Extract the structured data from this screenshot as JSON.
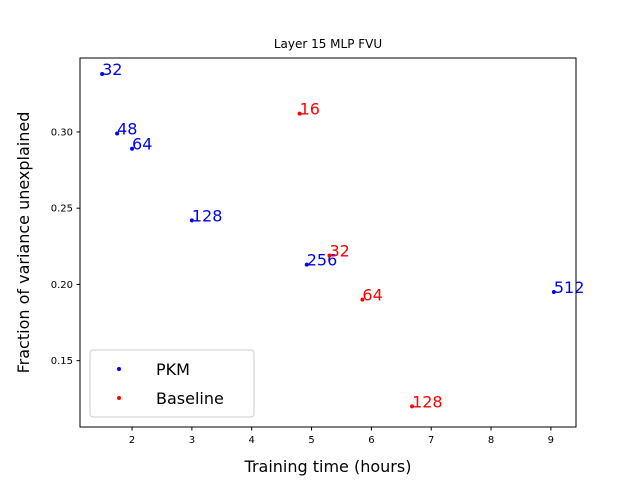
{
  "chart_data": {
    "type": "scatter",
    "title": "Layer 15 MLP FVU",
    "xlabel": "Training time (hours)",
    "ylabel": "Fraction of variance unexplained",
    "xlim": [
      1.13,
      9.42
    ],
    "ylim": [
      0.1065,
      0.3485
    ],
    "xticks": [
      2,
      3,
      4,
      5,
      6,
      7,
      8,
      9
    ],
    "yticks": [
      0.15,
      0.2,
      0.25,
      0.3
    ],
    "ytick_labels": [
      "0.15",
      "0.20",
      "0.25",
      "0.30"
    ],
    "grid": false,
    "legend_position": "lower-left",
    "series": [
      {
        "name": "PKM",
        "color": "#0000ff",
        "points": [
          {
            "x": 1.5,
            "y": 0.338,
            "label": "32"
          },
          {
            "x": 1.75,
            "y": 0.299,
            "label": "48"
          },
          {
            "x": 2.0,
            "y": 0.289,
            "label": "64"
          },
          {
            "x": 3.0,
            "y": 0.242,
            "label": "128"
          },
          {
            "x": 4.92,
            "y": 0.213,
            "label": "256"
          },
          {
            "x": 9.05,
            "y": 0.195,
            "label": "512"
          }
        ]
      },
      {
        "name": "Baseline",
        "color": "#ff0000",
        "points": [
          {
            "x": 4.8,
            "y": 0.312,
            "label": "16"
          },
          {
            "x": 5.3,
            "y": 0.219,
            "label": "32"
          },
          {
            "x": 5.85,
            "y": 0.19,
            "label": "64"
          },
          {
            "x": 6.68,
            "y": 0.12,
            "label": "128"
          }
        ]
      }
    ]
  }
}
